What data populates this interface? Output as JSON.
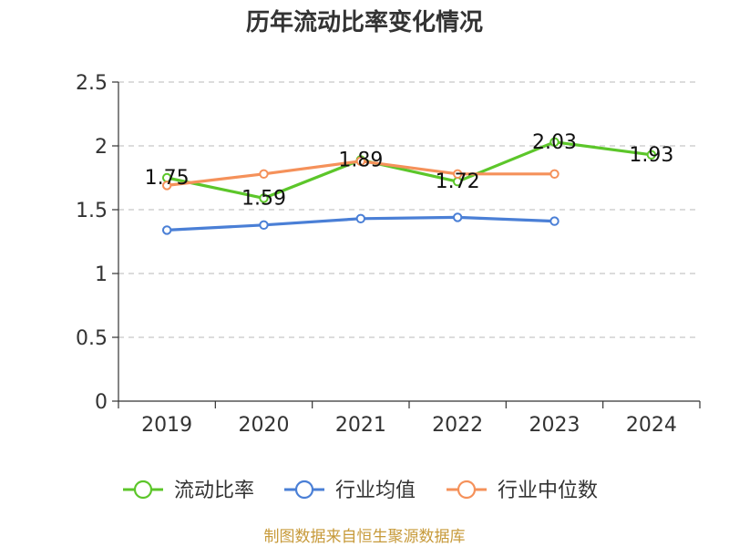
{
  "chart_data": {
    "type": "line",
    "title": "历年流动比率变化情况",
    "categories": [
      "2019",
      "2020",
      "2021",
      "2022",
      "2023",
      "2024"
    ],
    "yticks": [
      "0",
      "0.5",
      "1",
      "1.5",
      "2",
      "2.5"
    ],
    "ylim": [
      0,
      2.5
    ],
    "grid": true,
    "legend_position": "bottom",
    "series": [
      {
        "name": "流动比率",
        "color": "#5cc62a",
        "values": [
          1.75,
          1.59,
          1.89,
          1.72,
          2.03,
          1.93
        ],
        "labels": [
          "1.75",
          "1.59",
          "1.89",
          "1.72",
          "2.03",
          "1.93"
        ]
      },
      {
        "name": "行业均值",
        "color": "#4a7fd6",
        "values": [
          1.34,
          1.38,
          1.43,
          1.44,
          1.41,
          null
        ]
      },
      {
        "name": "行业中位数",
        "color": "#f5915a",
        "values": [
          1.69,
          1.78,
          1.88,
          1.78,
          1.78,
          null
        ]
      }
    ]
  },
  "source": "制图数据来自恒生聚源数据库"
}
